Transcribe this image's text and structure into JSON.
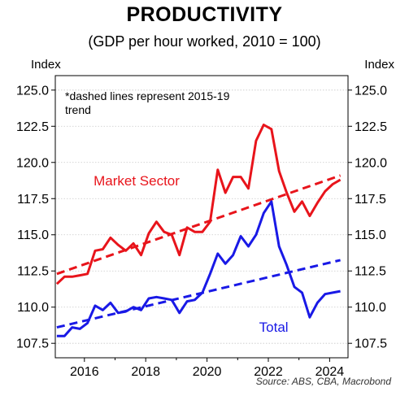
{
  "header": {
    "title": "PRODUCTIVITY",
    "subtitle": "(GDP per hour worked, 2010 = 100)",
    "y_unit_left": "Index",
    "y_unit_right": "Index",
    "source": "Source: ABS, CBA, Macrobond"
  },
  "chart_data": {
    "type": "line",
    "title": "PRODUCTIVITY",
    "subtitle": "(GDP per hour worked, 2010 = 100)",
    "ylabel": "Index",
    "ylim": [
      106.5,
      126
    ],
    "xlim": [
      2015.05,
      2024.6
    ],
    "grid": true,
    "y_ticks": [
      "107.5",
      "110.0",
      "112.5",
      "115.0",
      "117.5",
      "120.0",
      "122.5",
      "125.0"
    ],
    "x_ticks": [
      "2016",
      "2018",
      "2020",
      "2022",
      "2024"
    ],
    "annotation": "*dashed lines represent 2015-19 trend",
    "series": [
      {
        "name": "Market Sector",
        "color": "#e8141b",
        "style": "solid",
        "x": [
          2015.1,
          2015.35,
          2015.6,
          2015.85,
          2016.1,
          2016.35,
          2016.6,
          2016.85,
          2017.1,
          2017.35,
          2017.6,
          2017.85,
          2018.1,
          2018.35,
          2018.6,
          2018.85,
          2019.1,
          2019.35,
          2019.6,
          2019.85,
          2020.1,
          2020.35,
          2020.6,
          2020.85,
          2021.1,
          2021.35,
          2021.6,
          2021.85,
          2022.1,
          2022.35,
          2022.6,
          2022.85,
          2023.1,
          2023.35,
          2023.6,
          2023.85,
          2024.1,
          2024.35
        ],
        "values": [
          111.6,
          112.1,
          112.1,
          112.2,
          112.3,
          113.9,
          114.0,
          114.8,
          114.3,
          113.9,
          114.4,
          113.6,
          115.1,
          115.9,
          115.2,
          115.0,
          113.6,
          115.5,
          115.2,
          115.2,
          115.9,
          119.5,
          117.9,
          119.0,
          119.0,
          118.2,
          121.5,
          122.6,
          122.3,
          119.4,
          117.9,
          116.6,
          117.3,
          116.3,
          117.2,
          118.0,
          118.5,
          118.8
        ]
      },
      {
        "name": "Total",
        "color": "#1919e6",
        "style": "solid",
        "x": [
          2015.1,
          2015.35,
          2015.6,
          2015.85,
          2016.1,
          2016.35,
          2016.6,
          2016.85,
          2017.1,
          2017.35,
          2017.6,
          2017.85,
          2018.1,
          2018.35,
          2018.6,
          2018.85,
          2019.1,
          2019.35,
          2019.6,
          2019.85,
          2020.1,
          2020.35,
          2020.6,
          2020.85,
          2021.1,
          2021.35,
          2021.6,
          2021.85,
          2022.1,
          2022.35,
          2022.6,
          2022.85,
          2023.1,
          2023.35,
          2023.6,
          2023.85,
          2024.1,
          2024.35
        ],
        "values": [
          108.0,
          108.0,
          108.6,
          108.5,
          108.9,
          110.1,
          109.8,
          110.3,
          109.6,
          109.7,
          110.0,
          109.8,
          110.6,
          110.7,
          110.6,
          110.5,
          109.6,
          110.4,
          110.5,
          111.0,
          112.3,
          113.7,
          113.0,
          113.6,
          114.9,
          114.2,
          115.0,
          116.5,
          117.3,
          114.2,
          112.9,
          111.4,
          111.0,
          109.3,
          110.3,
          110.9,
          111.0,
          111.1
        ]
      },
      {
        "name": "Market Sector trend",
        "color": "#e8141b",
        "style": "dashed",
        "x": [
          2015.1,
          2024.35
        ],
        "values": [
          112.3,
          119.1
        ]
      },
      {
        "name": "Total trend",
        "color": "#1919e6",
        "style": "dashed",
        "x": [
          2015.1,
          2024.35
        ],
        "values": [
          108.6,
          113.25
        ]
      }
    ],
    "series_labels": [
      {
        "text": "Market Sector",
        "color": "#e8141b",
        "x": 2016.3,
        "y": 118.4
      },
      {
        "text": "Total",
        "color": "#1919e6",
        "x": 2021.7,
        "y": 108.3
      }
    ]
  }
}
